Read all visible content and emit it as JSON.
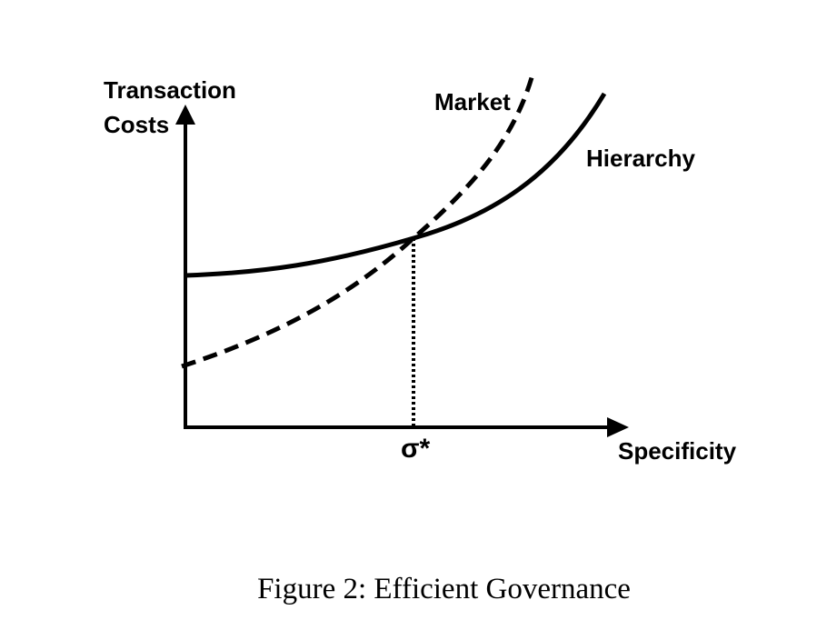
{
  "diagram": {
    "y_axis_label_line1": "Transaction",
    "y_axis_label_line2": "Costs",
    "x_axis_label": "Specificity",
    "curve_market_label": "Market",
    "curve_hierarchy_label": "Hierarchy",
    "intersection_label": "σ*"
  },
  "caption": "Figure 2: Efficient Governance",
  "colors": {
    "ink": "#000000",
    "background": "#ffffff"
  }
}
